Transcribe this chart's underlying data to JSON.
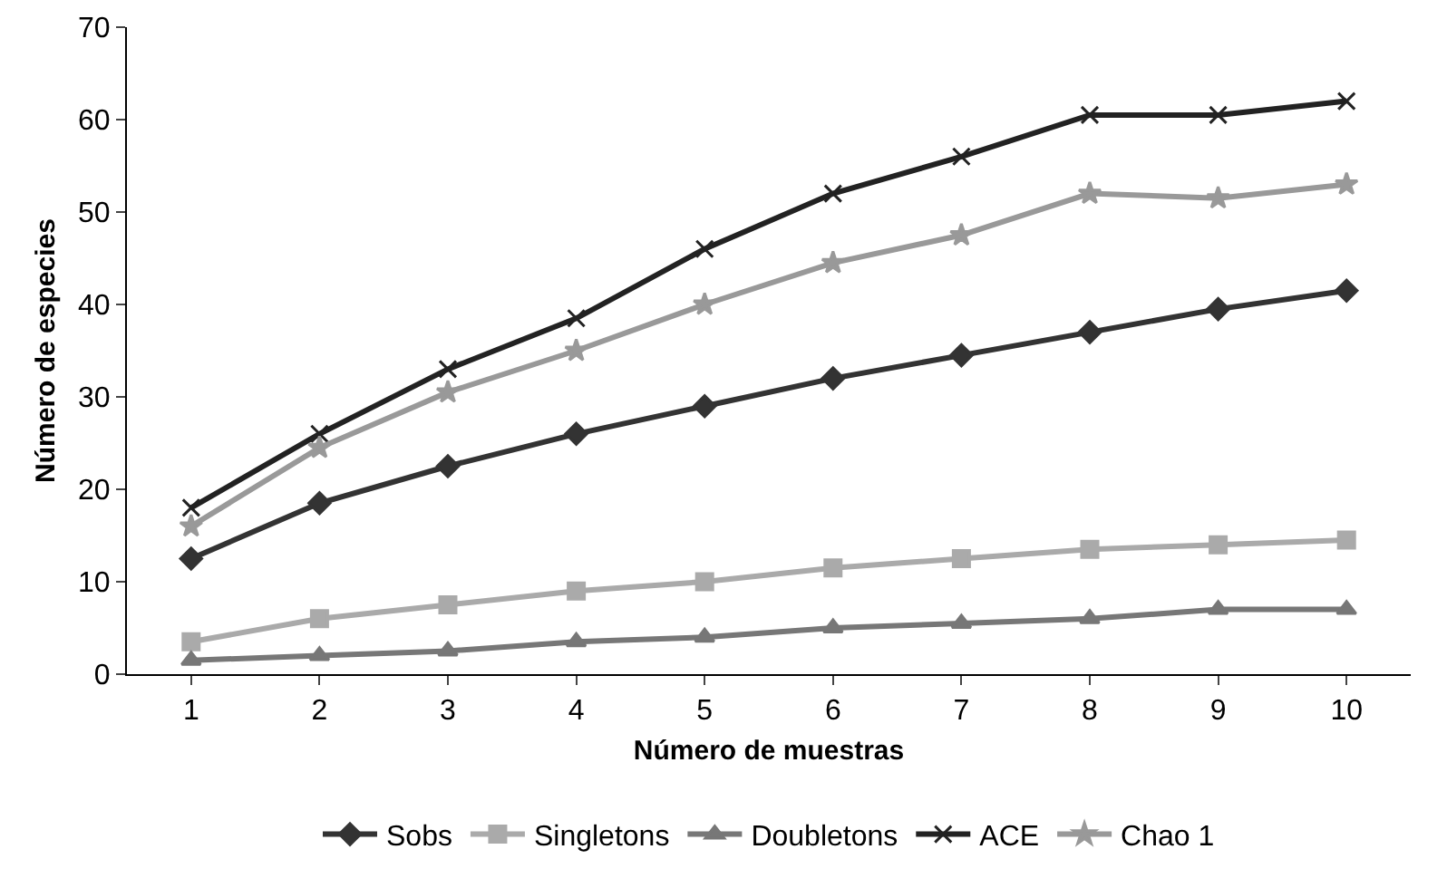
{
  "chart_data": {
    "type": "line",
    "xlabel": "Número de muestras",
    "ylabel": "Número de especies",
    "categories": [
      "1",
      "2",
      "3",
      "4",
      "5",
      "6",
      "7",
      "8",
      "9",
      "10"
    ],
    "ylim": [
      0,
      70
    ],
    "yticks": [
      0,
      10,
      20,
      30,
      40,
      50,
      60,
      70
    ],
    "grid": false,
    "legend": "bottom",
    "line_style": "solid",
    "series": [
      {
        "name": "Sobs",
        "color": "#333333",
        "marker": "diamond",
        "values": [
          12.5,
          18.5,
          22.5,
          26,
          29,
          32,
          34.5,
          37,
          39.5,
          41.5
        ]
      },
      {
        "name": "Singletons",
        "color": "#aaaaaa",
        "marker": "square",
        "values": [
          3.5,
          6,
          7.5,
          9,
          10,
          11.5,
          12.5,
          13.5,
          14,
          14.5
        ]
      },
      {
        "name": "Doubletons",
        "color": "#777777",
        "marker": "triangle",
        "values": [
          1.5,
          2,
          2.5,
          3.5,
          4,
          5,
          5.5,
          6,
          7,
          7
        ]
      },
      {
        "name": "ACE",
        "color": "#222222",
        "marker": "cross",
        "values": [
          18,
          26,
          33,
          38.5,
          46,
          52,
          56,
          60.5,
          60.5,
          62
        ]
      },
      {
        "name": "Chao 1",
        "color": "#999999",
        "marker": "star",
        "values": [
          16,
          24.5,
          30.5,
          35,
          40,
          44.5,
          47.5,
          52,
          51.5,
          53
        ]
      }
    ]
  }
}
